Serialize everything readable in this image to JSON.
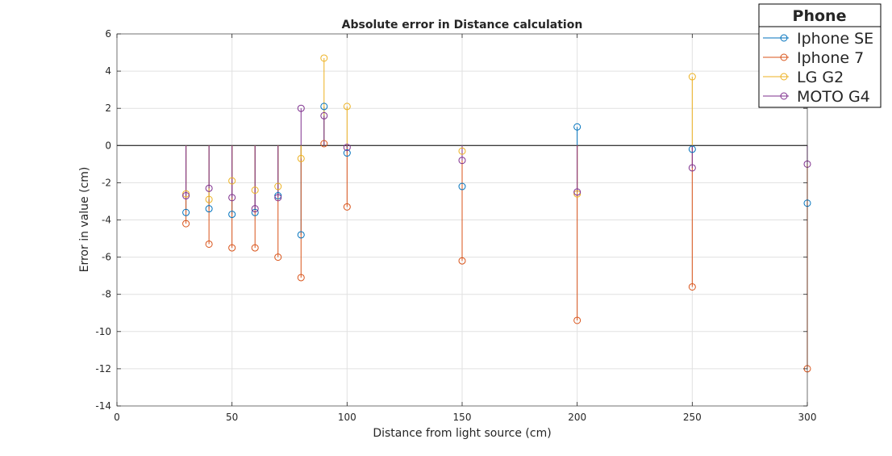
{
  "chart_data": {
    "type": "stem",
    "title": "Absolute error in Distance calculation",
    "xlabel": "Distance from light source (cm)",
    "ylabel": "Error in value (cm)",
    "xlim": [
      0,
      300
    ],
    "ylim": [
      -14,
      6
    ],
    "xticks": [
      0,
      50,
      100,
      150,
      200,
      250,
      300
    ],
    "yticks": [
      -14,
      -12,
      -10,
      -8,
      -6,
      -4,
      -2,
      0,
      2,
      4,
      6
    ],
    "grid": true,
    "legend_title": "Phone",
    "legend_position": "top-right",
    "series": [
      {
        "name": "Iphone SE",
        "color": "#0072BD",
        "x": [
          30,
          40,
          50,
          60,
          70,
          80,
          90,
          100,
          150,
          200,
          250,
          300
        ],
        "y": [
          -3.6,
          -3.4,
          -3.7,
          -3.6,
          -2.7,
          -4.8,
          2.1,
          -0.4,
          -2.2,
          1.0,
          -0.2,
          -3.1
        ]
      },
      {
        "name": "Iphone 7",
        "color": "#D95319",
        "x": [
          30,
          40,
          50,
          60,
          70,
          80,
          90,
          100,
          150,
          200,
          250,
          300
        ],
        "y": [
          -4.2,
          -5.3,
          -5.5,
          -5.5,
          -6.0,
          -7.1,
          0.1,
          -3.3,
          -6.2,
          -9.4,
          -7.6,
          -12.0
        ]
      },
      {
        "name": "LG G2",
        "color": "#EDB120",
        "x": [
          30,
          40,
          50,
          60,
          70,
          80,
          90,
          100,
          150,
          200,
          250
        ],
        "y": [
          -2.6,
          -2.9,
          -1.9,
          -2.4,
          -2.2,
          -0.7,
          4.7,
          2.1,
          -0.3,
          -2.6,
          3.7
        ]
      },
      {
        "name": "MOTO G4",
        "color": "#7E2F8E",
        "x": [
          30,
          40,
          50,
          60,
          70,
          80,
          90,
          100,
          150,
          200,
          250,
          300
        ],
        "y": [
          -2.7,
          -2.3,
          -2.8,
          -3.4,
          -2.8,
          2.0,
          1.6,
          -0.1,
          -0.8,
          -2.5,
          -1.2,
          -1.0
        ]
      }
    ]
  }
}
